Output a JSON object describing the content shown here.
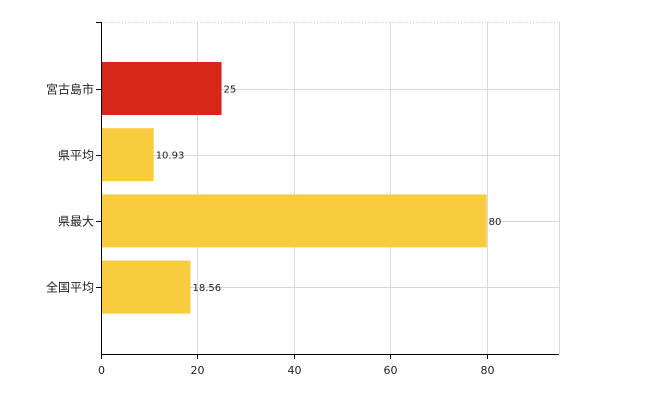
{
  "chart_data": {
    "type": "bar",
    "orientation": "horizontal",
    "categories": [
      "宮古島市",
      "県平均",
      "県最大",
      "全国平均"
    ],
    "values": [
      25,
      10.93,
      80,
      18.56
    ],
    "value_labels": [
      "25",
      "10.93",
      "80",
      "18.56"
    ],
    "bar_colors": [
      "#d7261a",
      "#f9cb3f",
      "#f9cb3f",
      "#f9cb3f"
    ],
    "xlim": [
      0,
      95
    ],
    "xticks": [
      0,
      20,
      40,
      60,
      80
    ],
    "xtick_labels": [
      "0",
      "20",
      "40",
      "60",
      "80"
    ],
    "grid": true,
    "title": "",
    "xlabel": "",
    "ylabel": ""
  }
}
